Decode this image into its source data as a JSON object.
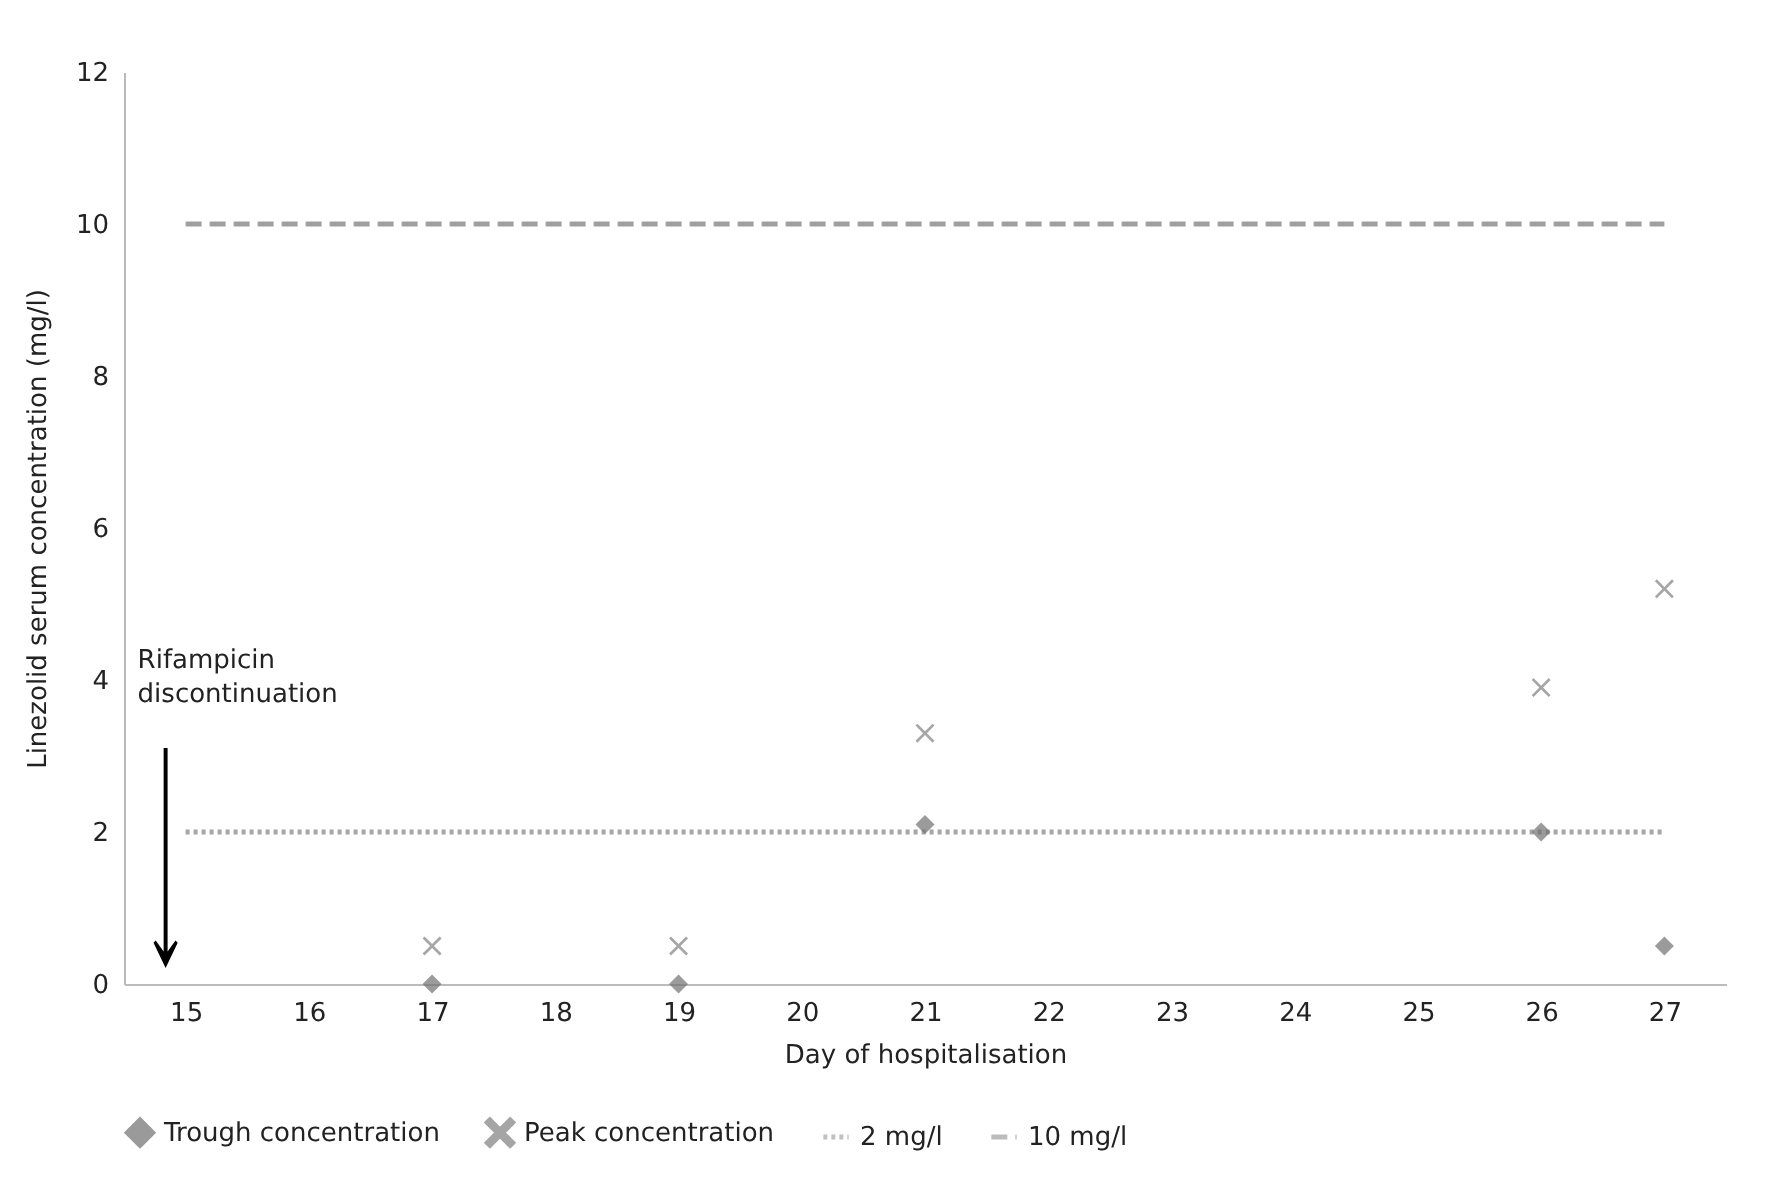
{
  "chart_data": {
    "type": "scatter",
    "xlabel": "Day of hospitalisation",
    "ylabel": "Linezolid serum concentration (mg/l)",
    "categories": [
      "15",
      "16",
      "17",
      "18",
      "19",
      "20",
      "21",
      "22",
      "23",
      "24",
      "25",
      "26",
      "27"
    ],
    "series": [
      {
        "name": "Trough concentration",
        "marker": "diamond",
        "color": "#707070",
        "values": [
          null,
          null,
          0,
          null,
          0,
          null,
          2.1,
          null,
          null,
          null,
          null,
          2.0,
          0.5
        ]
      },
      {
        "name": "Peak concentration",
        "marker": "cross",
        "color": "#808080",
        "values": [
          null,
          null,
          0.5,
          null,
          0.5,
          null,
          3.3,
          null,
          null,
          null,
          null,
          3.9,
          5.2
        ]
      },
      {
        "name": "2 mg/l",
        "type": "line",
        "line_style": "dotted",
        "color": "#a6a6a6",
        "values": [
          2,
          2,
          2,
          2,
          2,
          2,
          2,
          2,
          2,
          2,
          2,
          2,
          2
        ]
      },
      {
        "name": "10 mg/l",
        "type": "line",
        "line_style": "dashed",
        "color": "#a0a0a0",
        "values": [
          10,
          10,
          10,
          10,
          10,
          10,
          10,
          10,
          10,
          10,
          10,
          10,
          10
        ]
      }
    ],
    "ylim": [
      0,
      12
    ],
    "yticks": [
      0,
      2,
      4,
      6,
      8,
      10,
      12
    ],
    "grid": false,
    "legend": "bottom",
    "annotations": [
      "Rifampicin discontinuation"
    ]
  }
}
